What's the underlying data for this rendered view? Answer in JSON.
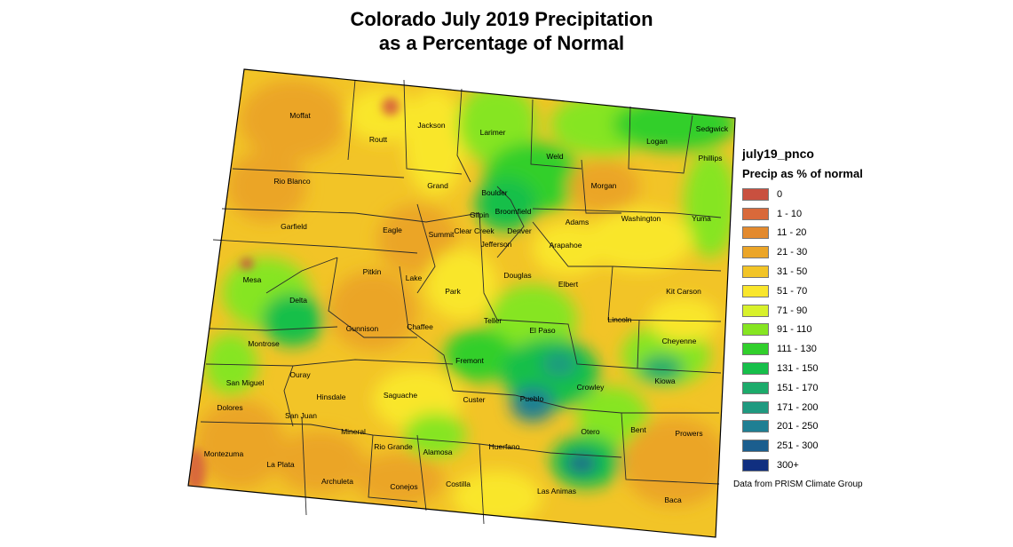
{
  "title": {
    "line1": "Colorado July 2019 Precipitation",
    "line2": "as a Percentage of Normal"
  },
  "legend": {
    "layer_name": "july19_pnco",
    "subtitle": "Precip as % of normal",
    "classes": [
      {
        "label": "0",
        "color": "#c9503f"
      },
      {
        "label": "1 - 10",
        "color": "#d9693a"
      },
      {
        "label": "11 - 20",
        "color": "#e38a2e"
      },
      {
        "label": "21 - 30",
        "color": "#eba528"
      },
      {
        "label": "31 - 50",
        "color": "#f2c427"
      },
      {
        "label": "51 - 70",
        "color": "#f9e62c"
      },
      {
        "label": "71 - 90",
        "color": "#d8f12b"
      },
      {
        "label": "91 - 110",
        "color": "#86e521"
      },
      {
        "label": "111 - 130",
        "color": "#31cf2c"
      },
      {
        "label": "131 - 150",
        "color": "#16bf4a"
      },
      {
        "label": "151 - 170",
        "color": "#1cab6b"
      },
      {
        "label": "171 - 200",
        "color": "#1f9a80"
      },
      {
        "label": "201 - 250",
        "color": "#1f7f93"
      },
      {
        "label": "251 - 300",
        "color": "#1b5e8e"
      },
      {
        "label": "300+",
        "color": "#102f80"
      }
    ]
  },
  "credit": "Data from PRISM Climate Group",
  "counties": [
    "Moffat",
    "Routt",
    "Jackson",
    "Larimer",
    "Logan",
    "Sedgwick",
    "Phillips",
    "Weld",
    "Rio Blanco",
    "Grand",
    "Boulder",
    "Morgan",
    "Broomfield",
    "Gilpin",
    "Washington",
    "Yuma",
    "Garfield",
    "Eagle",
    "Summit",
    "Clear Creek",
    "Denver",
    "Adams",
    "Jefferson",
    "Arapahoe",
    "Mesa",
    "Pitkin",
    "Lake",
    "Douglas",
    "Elbert",
    "Kit Carson",
    "Delta",
    "Park",
    "Teller",
    "El Paso",
    "Lincoln",
    "Montrose",
    "Gunnison",
    "Chaffee",
    "Cheyenne",
    "Fremont",
    "Ouray",
    "San Miguel",
    "Hinsdale",
    "Saguache",
    "Custer",
    "Pueblo",
    "Crowley",
    "Kiowa",
    "Dolores",
    "San Juan",
    "Mineral",
    "Rio Grande",
    "Huerfano",
    "Otero",
    "Bent",
    "Prowers",
    "Montezuma",
    "La Plata",
    "Alamosa",
    "Archuleta",
    "Conejos",
    "Costilla",
    "Las Animas",
    "Baca"
  ]
}
